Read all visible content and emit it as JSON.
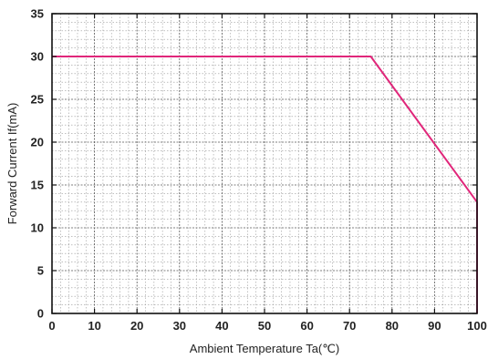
{
  "chart_data": {
    "type": "line",
    "xlabel": "Ambient Temperature Ta(℃)",
    "ylabel": "Forward Current If(mA)",
    "xlim": [
      0,
      100
    ],
    "ylim": [
      0,
      35
    ],
    "x_ticks": [
      0,
      10,
      20,
      30,
      40,
      50,
      60,
      70,
      80,
      90,
      100
    ],
    "y_ticks": [
      0,
      5,
      10,
      15,
      20,
      25,
      30,
      35
    ],
    "minor_x_step": 2,
    "minor_y_step": 1,
    "grid": true,
    "legend": "none",
    "series": [
      {
        "x": [
          0,
          75,
          100,
          100
        ],
        "y": [
          30,
          30,
          13,
          0
        ],
        "color": "#e0267a"
      }
    ]
  }
}
